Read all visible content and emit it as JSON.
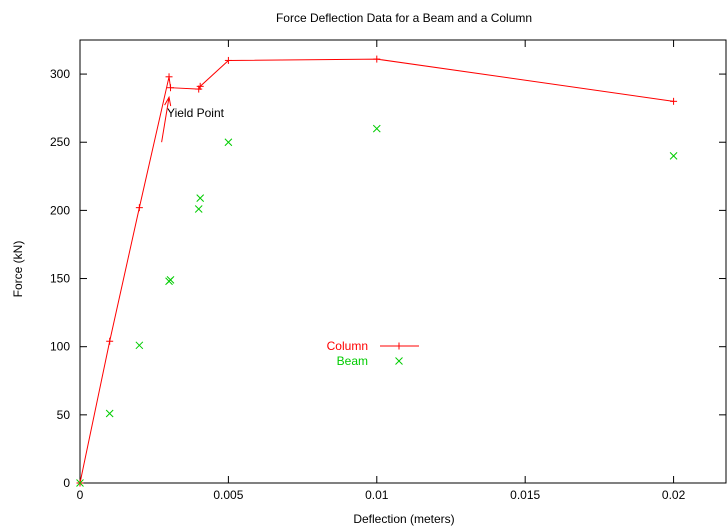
{
  "chart_data": {
    "type": "line",
    "title": "Force Deflection Data for a Beam and a Column",
    "xlabel": "Deflection (meters)",
    "ylabel": "Force (kN)",
    "xlim": [
      0,
      0.0218
    ],
    "ylim": [
      0,
      325
    ],
    "x_ticks": [
      0,
      0.005,
      0.01,
      0.015,
      0.02
    ],
    "x_tick_labels": [
      "0",
      "0.005",
      "0.01",
      "0.015",
      "0.02"
    ],
    "y_ticks": [
      0,
      50,
      100,
      150,
      200,
      250,
      300
    ],
    "y_tick_labels": [
      "0",
      "50",
      "100",
      "150",
      "200",
      "250",
      "300"
    ],
    "grid": false,
    "legend_placement": "center",
    "series": [
      {
        "name": "Column",
        "style": "linespoints",
        "marker": "plus",
        "color": "#ff0000",
        "points": [
          [
            0,
            0
          ],
          [
            0.001,
            104
          ],
          [
            0.002,
            202
          ],
          [
            0.003,
            298
          ],
          [
            0.00305,
            290
          ],
          [
            0.004,
            289
          ],
          [
            0.00405,
            291
          ],
          [
            0.005,
            310
          ],
          [
            0.01,
            311
          ],
          [
            0.02,
            280
          ]
        ]
      },
      {
        "name": "Beam",
        "style": "points",
        "marker": "cross",
        "color": "#00cc00",
        "points": [
          [
            0,
            0
          ],
          [
            0.001,
            51
          ],
          [
            0.002,
            101
          ],
          [
            0.003,
            148
          ],
          [
            0.00305,
            149
          ],
          [
            0.004,
            201
          ],
          [
            0.00405,
            209
          ],
          [
            0.005,
            250
          ],
          [
            0.01,
            260
          ],
          [
            0.02,
            240
          ]
        ]
      }
    ],
    "annotations": [
      {
        "text": "Yield Point",
        "arrow_to": [
          0.003,
          283
        ],
        "arrow_from": [
          0.00275,
          250
        ]
      }
    ]
  }
}
